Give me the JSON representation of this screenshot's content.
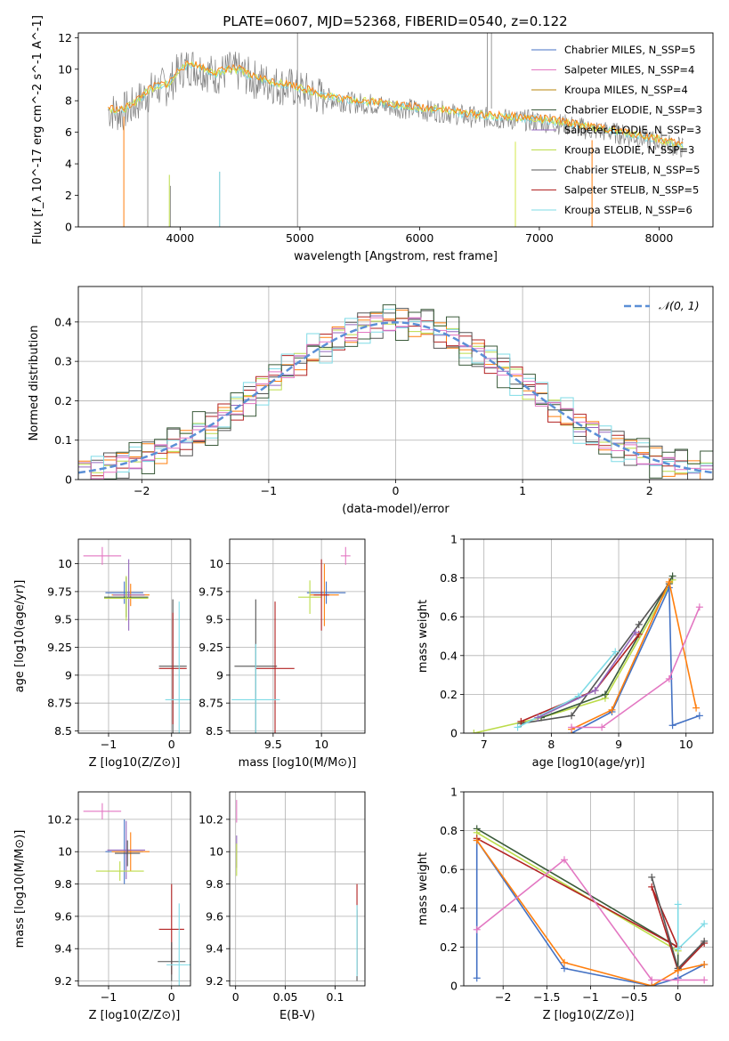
{
  "figure": {
    "title": "PLATE=0607, MJD=52368, FIBERID=0540, z=0.122"
  },
  "chart_data": [
    {
      "id": "spectrum",
      "type": "line",
      "title": "PLATE=0607, MJD=52368, FIBERID=0540, z=0.122",
      "xlabel": "wavelength [Angstrom, rest frame]",
      "ylabel": "Flux [f_λ 10^-17 erg cm^-2 s^-1 A^-1]",
      "xlim": [
        3150,
        8450
      ],
      "ylim": [
        0,
        12.3
      ],
      "xticks": [
        4000,
        5000,
        6000,
        7000,
        8000
      ],
      "yticks": [
        0,
        2,
        4,
        6,
        8,
        10,
        12
      ],
      "grid": false,
      "legend_position": "top-right",
      "legend": [
        {
          "label": "Chabrier MILES, N_SSP=5",
          "color": "#4472c4"
        },
        {
          "label": "Salpeter MILES, N_SSP=4",
          "color": "#e377c2"
        },
        {
          "label": "Kroupa MILES, N_SSP=4",
          "color": "#b8860b"
        },
        {
          "label": "Chabrier ELODIE, N_SSP=3",
          "color": "#3a5a3a"
        },
        {
          "label": "Salpeter ELODIE, N_SSP=3",
          "color": "#9467bd"
        },
        {
          "label": "Kroupa ELODIE, N_SSP=3",
          "color": "#bcdc4a"
        },
        {
          "label": "Chabrier STELIB, N_SSP=5",
          "color": "#555555"
        },
        {
          "label": "Salpeter STELIB, N_SSP=5",
          "color": "#b22222"
        },
        {
          "label": "Kroupa STELIB, N_SSP=6",
          "color": "#7fdbe6"
        }
      ],
      "data_series": {
        "name": "data",
        "color": "#808080",
        "x": [
          3400,
          3500,
          3600,
          3700,
          3800,
          3900,
          4000,
          4100,
          4200,
          4300,
          4400,
          4500,
          4600,
          4700,
          4800,
          4900,
          5000,
          5200,
          5400,
          5600,
          5800,
          6000,
          6200,
          6400,
          6600,
          6800,
          7000,
          7200,
          7400,
          7600,
          7800,
          8000,
          8200
        ],
        "y": [
          7.4,
          7.2,
          7.6,
          8.3,
          8.8,
          8.9,
          10.0,
          10.2,
          9.9,
          9.6,
          9.9,
          9.8,
          9.4,
          9.2,
          9.0,
          8.9,
          8.7,
          8.2,
          7.9,
          7.8,
          7.6,
          7.4,
          7.3,
          7.0,
          6.9,
          6.8,
          6.7,
          6.5,
          6.2,
          6.0,
          5.7,
          5.4,
          5.0
        ]
      },
      "model_series": {
        "name": "model",
        "colors": [
          "#7fdbe6",
          "#d2e84a",
          "#ff7f0e"
        ],
        "x": [
          3400,
          3500,
          3600,
          3700,
          3800,
          3900,
          4000,
          4100,
          4200,
          4300,
          4400,
          4500,
          4600,
          4700,
          4800,
          4900,
          5000,
          5200,
          5400,
          5600,
          5800,
          6000,
          6200,
          6400,
          6600,
          6800,
          7000,
          7200,
          7400,
          7600,
          7800,
          8000,
          8200
        ],
        "y": [
          7.5,
          7.3,
          7.7,
          8.4,
          8.9,
          9.0,
          10.0,
          10.3,
          10.0,
          9.7,
          10.0,
          9.9,
          9.5,
          9.3,
          9.1,
          9.0,
          8.8,
          8.3,
          8.0,
          7.9,
          7.7,
          7.5,
          7.4,
          7.1,
          7.0,
          6.9,
          6.8,
          6.6,
          6.3,
          6.1,
          5.8,
          5.5,
          5.1
        ]
      }
    },
    {
      "id": "residuals",
      "type": "line",
      "xlabel": "(data-model)/error",
      "ylabel": "Normed distribution",
      "xlim": [
        -2.5,
        2.5
      ],
      "ylim": [
        0,
        0.49
      ],
      "xticks": [
        -2,
        -1,
        0,
        1,
        2
      ],
      "yticks": [
        0.0,
        0.1,
        0.2,
        0.3,
        0.4
      ],
      "grid": true,
      "legend_position": "top-right",
      "legend": [
        {
          "label": "𝒩(0, 1)",
          "color": "#5b8fd6",
          "style": "dashed"
        }
      ],
      "bin_width": 0.1,
      "bin_start": -2.5,
      "series_colors": [
        "#9467bd",
        "#bcdc4a",
        "#ff7f0e",
        "#b22222",
        "#555555",
        "#7fdbe6",
        "#3a5a3a",
        "#e377c2"
      ],
      "jitter": [
        0.02,
        -0.03,
        0.015,
        0.03,
        -0.015,
        -0.025,
        0.01,
        0.025,
        -0.02,
        0.035,
        -0.01,
        0.02,
        -0.035,
        0.005,
        0.03,
        -0.02,
        0.01,
        -0.03,
        0.025,
        -0.005
      ]
    },
    {
      "id": "age-vs-Z",
      "type": "scatter",
      "xlabel": "Z [log10(Z/Z⊙)]",
      "ylabel": "age  [log10(age/yr)]",
      "xlim": [
        -1.48,
        0.3
      ],
      "ylim": [
        8.48,
        10.22
      ],
      "xticks": [
        -1,
        0
      ],
      "yticks": [
        8.5,
        8.75,
        9.0,
        9.25,
        9.5,
        9.75,
        10.0
      ],
      "grid": true,
      "points": [
        {
          "x": -1.1,
          "y": 10.07,
          "xerr": 0.3,
          "yerr": 0.08,
          "color": "#e377c2"
        },
        {
          "x": -0.75,
          "y": 9.74,
          "xerr": 0.3,
          "yerr": 0.1,
          "color": "#4472c4"
        },
        {
          "x": -0.65,
          "y": 9.72,
          "xerr": 0.3,
          "yerr": 0.1,
          "color": "#ff7f0e"
        },
        {
          "x": -0.72,
          "y": 9.7,
          "xerr": 0.35,
          "yerr": 0.18,
          "color": "#3a5a3a"
        },
        {
          "x": -0.68,
          "y": 9.72,
          "xerr": 0.25,
          "yerr": 0.32,
          "color": "#9467bd"
        },
        {
          "x": -0.72,
          "y": 9.69,
          "xerr": 0.35,
          "yerr": 0.2,
          "color": "#bcdc4a"
        },
        {
          "x": 0.02,
          "y": 9.08,
          "xerr": 0.22,
          "yerr": 0.6,
          "color": "#555555"
        },
        {
          "x": 0.02,
          "y": 9.06,
          "xerr": 0.22,
          "yerr": 0.5,
          "color": "#b22222"
        },
        {
          "x": 0.12,
          "y": 8.78,
          "xerr": 0.22,
          "yerr": 0.88,
          "color": "#7fdbe6"
        }
      ]
    },
    {
      "id": "age-vs-mass",
      "type": "scatter",
      "xlabel": "mass [log10(M/M⊙)]",
      "ylabel": "",
      "xlim": [
        9.05,
        10.45
      ],
      "ylim": [
        8.48,
        10.22
      ],
      "xticks": [
        9.5,
        10.0
      ],
      "yticks": [
        8.5,
        8.75,
        9.0,
        9.25,
        9.5,
        9.75,
        10.0
      ],
      "grid": true,
      "points": [
        {
          "x": 10.25,
          "y": 10.07,
          "xerr": 0.05,
          "yerr": 0.08,
          "color": "#e377c2"
        },
        {
          "x": 10.05,
          "y": 9.74,
          "xerr": 0.2,
          "yerr": 0.1,
          "color": "#4472c4"
        },
        {
          "x": 10.03,
          "y": 9.72,
          "xerr": 0.15,
          "yerr": 0.28,
          "color": "#ff7f0e"
        },
        {
          "x": 9.88,
          "y": 9.7,
          "xerr": 0.12,
          "yerr": 0.15,
          "color": "#bcdc4a"
        },
        {
          "x": 10.0,
          "y": 9.72,
          "xerr": 0.08,
          "yerr": 0.32,
          "color": "#b22222"
        },
        {
          "x": 9.32,
          "y": 9.08,
          "xerr": 0.22,
          "yerr": 0.6,
          "color": "#555555"
        },
        {
          "x": 9.52,
          "y": 9.06,
          "xerr": 0.2,
          "yerr": 0.6,
          "color": "#b22222"
        },
        {
          "x": 9.32,
          "y": 8.78,
          "xerr": 0.25,
          "yerr": 0.5,
          "color": "#7fdbe6"
        }
      ]
    },
    {
      "id": "weight-vs-age",
      "type": "line",
      "xlabel": "age  [log10(age/yr)]",
      "ylabel": "mass weight",
      "xlim": [
        6.7,
        10.4
      ],
      "ylim": [
        0,
        1.0
      ],
      "xticks": [
        7,
        8,
        9,
        10
      ],
      "yticks": [
        0.0,
        0.2,
        0.4,
        0.6,
        0.8,
        1.0
      ],
      "grid": true,
      "series": [
        {
          "color": "#bcdc4a",
          "x": [
            6.85,
            7.85,
            8.8,
            9.8
          ],
          "y": [
            0.0,
            0.08,
            0.18,
            0.79
          ]
        },
        {
          "color": "#3a5a3a",
          "x": [
            7.85,
            8.8,
            9.8
          ],
          "y": [
            0.08,
            0.2,
            0.81
          ]
        },
        {
          "color": "#555555",
          "x": [
            7.55,
            8.3,
            9.3,
            9.75
          ],
          "y": [
            0.05,
            0.09,
            0.56,
            0.77
          ]
        },
        {
          "color": "#b22222",
          "x": [
            7.55,
            8.65,
            9.3
          ],
          "y": [
            0.06,
            0.22,
            0.51
          ]
        },
        {
          "color": "#7fdbe6",
          "x": [
            7.5,
            8.4,
            8.95
          ],
          "y": [
            0.03,
            0.19,
            0.42
          ]
        },
        {
          "color": "#9467bd",
          "x": [
            7.8,
            8.65,
            9.25
          ],
          "y": [
            0.08,
            0.22,
            0.52
          ]
        },
        {
          "color": "#4472c4",
          "x": [
            8.3,
            8.9,
            9.75,
            9.8,
            10.2
          ],
          "y": [
            0.0,
            0.11,
            0.75,
            0.04,
            0.09
          ]
        },
        {
          "color": "#ff7f0e",
          "x": [
            8.3,
            8.9,
            9.75,
            10.15
          ],
          "y": [
            0.02,
            0.12,
            0.78,
            0.13
          ]
        },
        {
          "color": "#e377c2",
          "x": [
            8.3,
            8.75,
            9.75,
            10.2
          ],
          "y": [
            0.03,
            0.03,
            0.28,
            0.65
          ]
        }
      ]
    },
    {
      "id": "mass-vs-Z",
      "type": "scatter",
      "xlabel": "Z [log10(Z/Z⊙)]",
      "ylabel": "mass [log10(M/M⊙)]",
      "xlim": [
        -1.48,
        0.3
      ],
      "ylim": [
        9.17,
        10.37
      ],
      "xticks": [
        -1,
        0
      ],
      "yticks": [
        9.2,
        9.4,
        9.6,
        9.8,
        10.0,
        10.2
      ],
      "grid": true,
      "points": [
        {
          "x": -1.1,
          "y": 10.25,
          "xerr": 0.3,
          "yerr": 0.05,
          "color": "#e377c2"
        },
        {
          "x": -0.75,
          "y": 10.0,
          "xerr": 0.3,
          "yerr": 0.2,
          "color": "#4472c4"
        },
        {
          "x": -0.65,
          "y": 10.0,
          "xerr": 0.3,
          "yerr": 0.12,
          "color": "#ff7f0e"
        },
        {
          "x": -0.72,
          "y": 10.01,
          "xerr": 0.3,
          "yerr": 0.18,
          "color": "#9467bd"
        },
        {
          "x": -0.7,
          "y": 9.99,
          "xerr": 0.2,
          "yerr": 0.08,
          "color": "#555555"
        },
        {
          "x": -0.82,
          "y": 9.88,
          "xerr": 0.38,
          "yerr": 0.06,
          "color": "#bcdc4a"
        },
        {
          "x": 0.0,
          "y": 9.52,
          "xerr": 0.2,
          "yerr": 0.28,
          "color": "#b22222"
        },
        {
          "x": 0.0,
          "y": 9.32,
          "xerr": 0.22,
          "yerr": 0.12,
          "color": "#555555"
        },
        {
          "x": 0.12,
          "y": 9.3,
          "xerr": 0.2,
          "yerr": 0.38,
          "color": "#7fdbe6"
        }
      ]
    },
    {
      "id": "mass-vs-ebv",
      "type": "scatter",
      "xlabel": "E(B-V)",
      "ylabel": "",
      "xlim": [
        -0.006,
        0.13
      ],
      "ylim": [
        9.17,
        10.37
      ],
      "xticks": [
        0.0,
        0.05,
        0.1
      ],
      "yticks": [
        9.2,
        9.4,
        9.6,
        9.8,
        10.0,
        10.2
      ],
      "grid": true,
      "points": [
        {
          "x": 0.001,
          "y": 10.25,
          "xerr": 0.0,
          "yerr": 0.07,
          "color": "#e377c2"
        },
        {
          "x": 0.001,
          "y": 10.0,
          "xerr": 0.0,
          "yerr": 0.1,
          "color": "#9467bd"
        },
        {
          "x": 0.001,
          "y": 9.95,
          "xerr": 0.0,
          "yerr": 0.1,
          "color": "#bcdc4a"
        },
        {
          "x": 0.122,
          "y": 9.52,
          "xerr": 0.0,
          "yerr": 0.28,
          "color": "#b22222"
        },
        {
          "x": 0.122,
          "y": 9.42,
          "xerr": 0.0,
          "yerr": 0.22,
          "color": "#555555"
        },
        {
          "x": 0.122,
          "y": 9.45,
          "xerr": 0.0,
          "yerr": 0.22,
          "color": "#7fdbe6"
        }
      ]
    },
    {
      "id": "weight-vs-Z",
      "type": "line",
      "xlabel": "Z [log10(Z/Z⊙)]",
      "ylabel": "mass weight",
      "xlim": [
        -2.45,
        0.4
      ],
      "ylim": [
        0,
        1.0
      ],
      "xticks": [
        -2.0,
        -1.5,
        -1.0,
        -0.5,
        0.0
      ],
      "yticks": [
        0.0,
        0.2,
        0.4,
        0.6,
        0.8,
        1.0
      ],
      "grid": true,
      "series": [
        {
          "color": "#3a5a3a",
          "x": [
            -2.3,
            0.0,
            0.0
          ],
          "y": [
            0.81,
            0.2,
            0.08
          ]
        },
        {
          "color": "#bcdc4a",
          "x": [
            -2.3,
            0.0
          ],
          "y": [
            0.79,
            0.18
          ]
        },
        {
          "color": "#b22222",
          "x": [
            -2.3,
            0.0,
            -0.3,
            0.0,
            0.3
          ],
          "y": [
            0.76,
            0.2,
            0.51,
            0.08,
            0.22
          ]
        },
        {
          "color": "#555555",
          "x": [
            -0.3,
            0.0,
            0.3
          ],
          "y": [
            0.56,
            0.09,
            0.23
          ]
        },
        {
          "color": "#4472c4",
          "x": [
            -2.3,
            -2.3,
            -1.3,
            -0.3,
            0.0,
            0.3
          ],
          "y": [
            0.04,
            0.75,
            0.09,
            0.0,
            0.04,
            0.11
          ]
        },
        {
          "color": "#ff7f0e",
          "x": [
            -2.3,
            -1.3,
            -0.3,
            0.0,
            0.3
          ],
          "y": [
            0.75,
            0.12,
            0.0,
            0.08,
            0.11
          ]
        },
        {
          "color": "#e377c2",
          "x": [
            -2.3,
            -1.3,
            -0.3,
            0.0,
            0.3
          ],
          "y": [
            0.29,
            0.65,
            0.03,
            0.03,
            0.03
          ]
        },
        {
          "color": "#7fdbe6",
          "x": [
            0.0,
            0.0,
            0.3
          ],
          "y": [
            0.42,
            0.19,
            0.32
          ]
        }
      ]
    }
  ]
}
